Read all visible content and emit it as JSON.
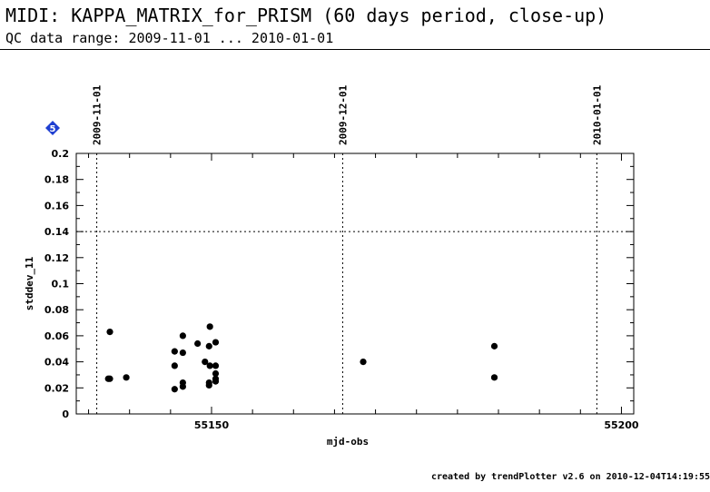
{
  "header": {
    "title": "MIDI: KAPPA_MATRIX_for_PRISM (60 days period, close-up)",
    "subtitle": "QC data range: 2009-11-01 ... 2010-01-01"
  },
  "badge": {
    "label": "5",
    "color": "#1f3fd1"
  },
  "footer": {
    "text": "created by trendPlotter v2.6 on 2010-12-04T14:19:55"
  },
  "chart_data": {
    "type": "scatter",
    "title": "MIDI: KAPPA_MATRIX_for_PRISM (60 days period, close-up)",
    "xlabel": "mjd-obs",
    "ylabel": "stddev_11",
    "xlim": [
      55133.5,
      55201.5
    ],
    "ylim": [
      0,
      0.2
    ],
    "x_ticks": [
      55150,
      55200
    ],
    "y_ticks": [
      0,
      0.02,
      0.04,
      0.06,
      0.08,
      0.1,
      0.12,
      0.14,
      0.16,
      0.18,
      0.2
    ],
    "date_markers": [
      {
        "x": 55136,
        "label": "2009-11-01"
      },
      {
        "x": 55166,
        "label": "2009-12-01"
      },
      {
        "x": 55197,
        "label": "2010-01-01"
      }
    ],
    "reference_line_y": 0.14,
    "grid": false,
    "marker_color": "#000000",
    "points": [
      {
        "x": 55137.6,
        "y": 0.063
      },
      {
        "x": 55137.4,
        "y": 0.027
      },
      {
        "x": 55137.6,
        "y": 0.027
      },
      {
        "x": 55139.6,
        "y": 0.028
      },
      {
        "x": 55145.5,
        "y": 0.048
      },
      {
        "x": 55145.5,
        "y": 0.037
      },
      {
        "x": 55145.5,
        "y": 0.019
      },
      {
        "x": 55146.5,
        "y": 0.06
      },
      {
        "x": 55146.5,
        "y": 0.047
      },
      {
        "x": 55146.5,
        "y": 0.024
      },
      {
        "x": 55146.5,
        "y": 0.021
      },
      {
        "x": 55148.3,
        "y": 0.054
      },
      {
        "x": 55149.2,
        "y": 0.04
      },
      {
        "x": 55149.8,
        "y": 0.067
      },
      {
        "x": 55149.7,
        "y": 0.052
      },
      {
        "x": 55149.8,
        "y": 0.037
      },
      {
        "x": 55149.7,
        "y": 0.024
      },
      {
        "x": 55149.7,
        "y": 0.022
      },
      {
        "x": 55150.5,
        "y": 0.055
      },
      {
        "x": 55150.5,
        "y": 0.037
      },
      {
        "x": 55150.5,
        "y": 0.031
      },
      {
        "x": 55150.5,
        "y": 0.027
      },
      {
        "x": 55150.5,
        "y": 0.025
      },
      {
        "x": 55168.5,
        "y": 0.04
      },
      {
        "x": 55184.5,
        "y": 0.052
      },
      {
        "x": 55184.5,
        "y": 0.028
      }
    ]
  }
}
